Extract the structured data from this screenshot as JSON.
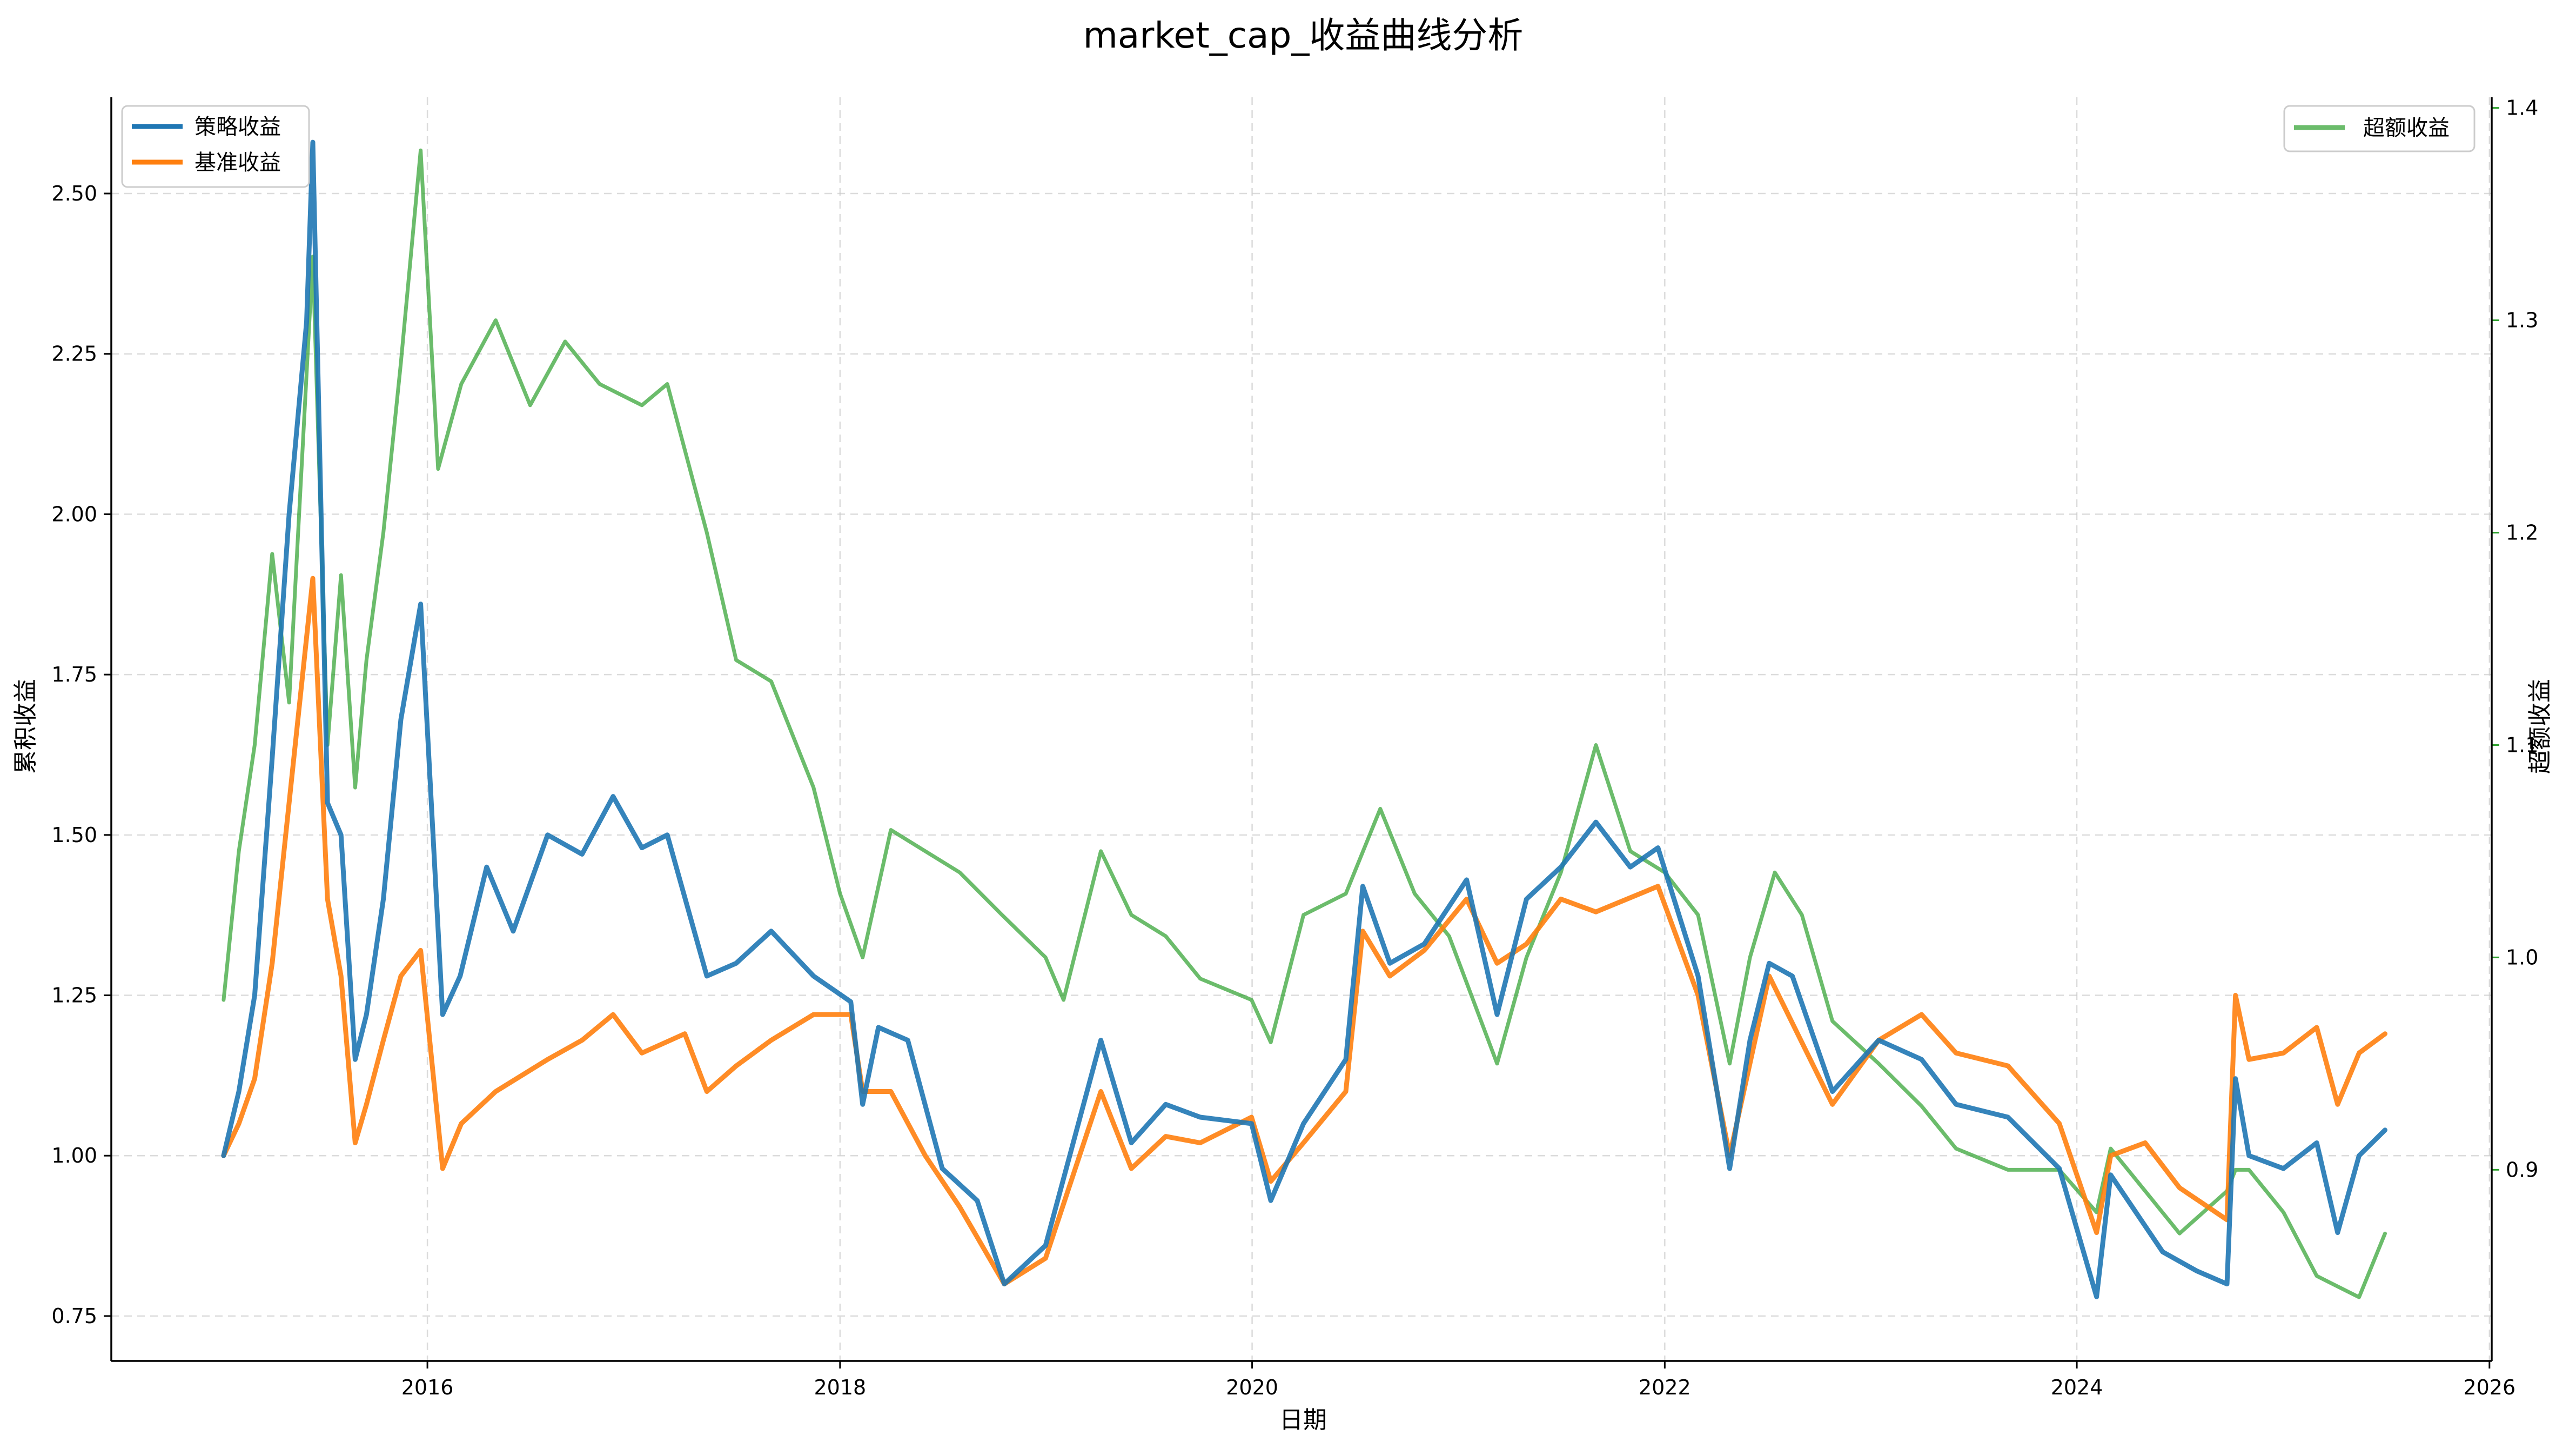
{
  "chart_data": {
    "type": "line",
    "title": "market_cap_收益曲线分析",
    "xlabel": "日期",
    "ylabel_left": "累积收益",
    "ylabel_right": "超额收益",
    "x_range": [
      "2014-06-20",
      "2026-01-05"
    ],
    "ylim_left": [
      0.68,
      2.65
    ],
    "ylim_right": [
      0.81,
      1.405
    ],
    "x_ticks": [
      "2016",
      "2018",
      "2020",
      "2022",
      "2024",
      "2026"
    ],
    "y_ticks_left": [
      "0.75",
      "1.00",
      "1.25",
      "1.50",
      "1.75",
      "2.00",
      "2.25",
      "2.50"
    ],
    "y_ticks_right": [
      "0.9",
      "1.0",
      "1.1",
      "1.2",
      "1.3",
      "1.4"
    ],
    "grid": true,
    "legend_left": [
      "策略收益",
      "基准收益"
    ],
    "legend_right": [
      "超额收益"
    ],
    "colors": {
      "strategy": "#1f77b4",
      "benchmark": "#ff7f0e",
      "excess": "#2ca02c",
      "right_axis": "#2ca02c"
    },
    "series": [
      {
        "name": "策略收益",
        "axis": "left",
        "points": [
          [
            "2015-01-05",
            1.0
          ],
          [
            "2015-02-01",
            1.1
          ],
          [
            "2015-03-01",
            1.25
          ],
          [
            "2015-04-01",
            1.62
          ],
          [
            "2015-05-01",
            2.0
          ],
          [
            "2015-06-01",
            2.3
          ],
          [
            "2015-06-12",
            2.58
          ],
          [
            "2015-07-08",
            1.55
          ],
          [
            "2015-08-01",
            1.5
          ],
          [
            "2015-08-26",
            1.15
          ],
          [
            "2015-09-15",
            1.22
          ],
          [
            "2015-10-15",
            1.4
          ],
          [
            "2015-11-15",
            1.68
          ],
          [
            "2015-12-20",
            1.86
          ],
          [
            "2016-01-28",
            1.22
          ],
          [
            "2016-02-28",
            1.28
          ],
          [
            "2016-04-15",
            1.45
          ],
          [
            "2016-06-01",
            1.35
          ],
          [
            "2016-08-01",
            1.5
          ],
          [
            "2016-10-01",
            1.47
          ],
          [
            "2016-11-25",
            1.56
          ],
          [
            "2017-01-15",
            1.48
          ],
          [
            "2017-03-01",
            1.5
          ],
          [
            "2017-05-10",
            1.28
          ],
          [
            "2017-07-01",
            1.3
          ],
          [
            "2017-09-01",
            1.35
          ],
          [
            "2017-11-15",
            1.28
          ],
          [
            "2018-01-20",
            1.24
          ],
          [
            "2018-02-10",
            1.08
          ],
          [
            "2018-03-10",
            1.2
          ],
          [
            "2018-05-01",
            1.18
          ],
          [
            "2018-07-01",
            0.98
          ],
          [
            "2018-09-01",
            0.93
          ],
          [
            "2018-10-19",
            0.8
          ],
          [
            "2018-12-31",
            0.86
          ],
          [
            "2019-04-08",
            1.18
          ],
          [
            "2019-06-01",
            1.02
          ],
          [
            "2019-08-01",
            1.08
          ],
          [
            "2019-10-01",
            1.06
          ],
          [
            "2019-12-31",
            1.05
          ],
          [
            "2020-02-03",
            0.93
          ],
          [
            "2020-04-01",
            1.05
          ],
          [
            "2020-06-15",
            1.15
          ],
          [
            "2020-07-15",
            1.42
          ],
          [
            "2020-09-01",
            1.3
          ],
          [
            "2020-11-01",
            1.33
          ],
          [
            "2021-01-15",
            1.43
          ],
          [
            "2021-03-10",
            1.22
          ],
          [
            "2021-05-01",
            1.4
          ],
          [
            "2021-07-01",
            1.45
          ],
          [
            "2021-09-01",
            1.52
          ],
          [
            "2021-11-01",
            1.45
          ],
          [
            "2021-12-20",
            1.48
          ],
          [
            "2022-03-01",
            1.28
          ],
          [
            "2022-04-26",
            0.98
          ],
          [
            "2022-06-01",
            1.18
          ],
          [
            "2022-07-05",
            1.3
          ],
          [
            "2022-08-15",
            1.28
          ],
          [
            "2022-10-25",
            1.1
          ],
          [
            "2023-01-15",
            1.18
          ],
          [
            "2023-04-01",
            1.15
          ],
          [
            "2023-06-01",
            1.08
          ],
          [
            "2023-09-01",
            1.06
          ],
          [
            "2023-12-01",
            0.98
          ],
          [
            "2024-02-05",
            0.78
          ],
          [
            "2024-03-01",
            0.97
          ],
          [
            "2024-06-01",
            0.85
          ],
          [
            "2024-08-01",
            0.82
          ],
          [
            "2024-09-23",
            0.8
          ],
          [
            "2024-10-08",
            1.12
          ],
          [
            "2024-11-01",
            1.0
          ],
          [
            "2025-01-01",
            0.98
          ],
          [
            "2025-03-01",
            1.02
          ],
          [
            "2025-04-07",
            0.88
          ],
          [
            "2025-05-15",
            1.0
          ],
          [
            "2025-06-30",
            1.04
          ]
        ]
      },
      {
        "name": "基准收益",
        "axis": "left",
        "points": [
          [
            "2015-01-05",
            1.0
          ],
          [
            "2015-02-01",
            1.05
          ],
          [
            "2015-03-01",
            1.12
          ],
          [
            "2015-04-01",
            1.3
          ],
          [
            "2015-05-01",
            1.55
          ],
          [
            "2015-06-12",
            1.9
          ],
          [
            "2015-07-08",
            1.4
          ],
          [
            "2015-08-01",
            1.28
          ],
          [
            "2015-08-26",
            1.02
          ],
          [
            "2015-09-15",
            1.08
          ],
          [
            "2015-10-15",
            1.18
          ],
          [
            "2015-11-15",
            1.28
          ],
          [
            "2015-12-20",
            1.32
          ],
          [
            "2016-01-28",
            0.98
          ],
          [
            "2016-03-01",
            1.05
          ],
          [
            "2016-05-01",
            1.1
          ],
          [
            "2016-08-01",
            1.15
          ],
          [
            "2016-10-01",
            1.18
          ],
          [
            "2016-11-25",
            1.22
          ],
          [
            "2017-01-15",
            1.16
          ],
          [
            "2017-04-01",
            1.19
          ],
          [
            "2017-05-10",
            1.1
          ],
          [
            "2017-07-01",
            1.14
          ],
          [
            "2017-09-01",
            1.18
          ],
          [
            "2017-11-15",
            1.22
          ],
          [
            "2018-01-20",
            1.22
          ],
          [
            "2018-02-10",
            1.1
          ],
          [
            "2018-04-01",
            1.1
          ],
          [
            "2018-06-01",
            1.0
          ],
          [
            "2018-08-01",
            0.92
          ],
          [
            "2018-10-19",
            0.8
          ],
          [
            "2018-12-31",
            0.84
          ],
          [
            "2019-04-08",
            1.1
          ],
          [
            "2019-06-01",
            0.98
          ],
          [
            "2019-08-01",
            1.03
          ],
          [
            "2019-10-01",
            1.02
          ],
          [
            "2019-12-31",
            1.06
          ],
          [
            "2020-02-03",
            0.96
          ],
          [
            "2020-04-01",
            1.02
          ],
          [
            "2020-06-15",
            1.1
          ],
          [
            "2020-07-15",
            1.35
          ],
          [
            "2020-09-01",
            1.28
          ],
          [
            "2020-11-01",
            1.32
          ],
          [
            "2021-01-15",
            1.4
          ],
          [
            "2021-03-10",
            1.3
          ],
          [
            "2021-05-01",
            1.33
          ],
          [
            "2021-07-01",
            1.4
          ],
          [
            "2021-09-01",
            1.38
          ],
          [
            "2021-12-20",
            1.42
          ],
          [
            "2022-03-01",
            1.25
          ],
          [
            "2022-04-26",
            1.0
          ],
          [
            "2022-07-05",
            1.28
          ],
          [
            "2022-10-25",
            1.08
          ],
          [
            "2023-01-15",
            1.18
          ],
          [
            "2023-04-01",
            1.22
          ],
          [
            "2023-06-01",
            1.16
          ],
          [
            "2023-09-01",
            1.14
          ],
          [
            "2023-12-01",
            1.05
          ],
          [
            "2024-02-05",
            0.88
          ],
          [
            "2024-03-01",
            1.0
          ],
          [
            "2024-05-01",
            1.02
          ],
          [
            "2024-07-01",
            0.95
          ],
          [
            "2024-09-23",
            0.9
          ],
          [
            "2024-10-08",
            1.25
          ],
          [
            "2024-11-01",
            1.15
          ],
          [
            "2025-01-01",
            1.16
          ],
          [
            "2025-03-01",
            1.2
          ],
          [
            "2025-04-07",
            1.08
          ],
          [
            "2025-05-15",
            1.16
          ],
          [
            "2025-06-30",
            1.19
          ]
        ]
      },
      {
        "name": "超额收益",
        "axis": "right",
        "points": [
          [
            "2015-01-05",
            0.98
          ],
          [
            "2015-02-01",
            1.05
          ],
          [
            "2015-03-01",
            1.1
          ],
          [
            "2015-04-01",
            1.19
          ],
          [
            "2015-05-01",
            1.12
          ],
          [
            "2015-06-12",
            1.33
          ],
          [
            "2015-07-08",
            1.1
          ],
          [
            "2015-08-01",
            1.18
          ],
          [
            "2015-08-26",
            1.08
          ],
          [
            "2015-09-15",
            1.14
          ],
          [
            "2015-10-15",
            1.2
          ],
          [
            "2015-11-15",
            1.28
          ],
          [
            "2015-12-20",
            1.38
          ],
          [
            "2016-01-20",
            1.23
          ],
          [
            "2016-03-01",
            1.27
          ],
          [
            "2016-05-01",
            1.3
          ],
          [
            "2016-07-01",
            1.26
          ],
          [
            "2016-09-01",
            1.29
          ],
          [
            "2016-11-01",
            1.27
          ],
          [
            "2017-01-15",
            1.26
          ],
          [
            "2017-03-01",
            1.27
          ],
          [
            "2017-05-10",
            1.2
          ],
          [
            "2017-07-01",
            1.14
          ],
          [
            "2017-09-01",
            1.13
          ],
          [
            "2017-11-15",
            1.08
          ],
          [
            "2018-01-01",
            1.03
          ],
          [
            "2018-02-10",
            1.0
          ],
          [
            "2018-04-01",
            1.06
          ],
          [
            "2018-06-01",
            1.05
          ],
          [
            "2018-08-01",
            1.04
          ],
          [
            "2018-10-15",
            1.02
          ],
          [
            "2018-12-31",
            1.0
          ],
          [
            "2019-02-01",
            0.98
          ],
          [
            "2019-04-08",
            1.05
          ],
          [
            "2019-06-01",
            1.02
          ],
          [
            "2019-08-01",
            1.01
          ],
          [
            "2019-10-01",
            0.99
          ],
          [
            "2019-12-31",
            0.98
          ],
          [
            "2020-02-03",
            0.96
          ],
          [
            "2020-04-01",
            1.02
          ],
          [
            "2020-06-15",
            1.03
          ],
          [
            "2020-08-15",
            1.07
          ],
          [
            "2020-10-15",
            1.03
          ],
          [
            "2020-12-15",
            1.01
          ],
          [
            "2021-03-10",
            0.95
          ],
          [
            "2021-05-01",
            1.0
          ],
          [
            "2021-07-01",
            1.04
          ],
          [
            "2021-09-01",
            1.1
          ],
          [
            "2021-11-01",
            1.05
          ],
          [
            "2022-01-01",
            1.04
          ],
          [
            "2022-03-01",
            1.02
          ],
          [
            "2022-04-26",
            0.95
          ],
          [
            "2022-06-01",
            1.0
          ],
          [
            "2022-07-15",
            1.04
          ],
          [
            "2022-09-01",
            1.02
          ],
          [
            "2022-10-25",
            0.97
          ],
          [
            "2023-01-15",
            0.95
          ],
          [
            "2023-04-01",
            0.93
          ],
          [
            "2023-06-01",
            0.91
          ],
          [
            "2023-09-01",
            0.9
          ],
          [
            "2023-12-01",
            0.9
          ],
          [
            "2024-02-05",
            0.88
          ],
          [
            "2024-03-01",
            0.91
          ],
          [
            "2024-05-01",
            0.89
          ],
          [
            "2024-07-01",
            0.87
          ],
          [
            "2024-09-23",
            0.89
          ],
          [
            "2024-10-08",
            0.9
          ],
          [
            "2024-11-01",
            0.9
          ],
          [
            "2025-01-01",
            0.88
          ],
          [
            "2025-03-01",
            0.85
          ],
          [
            "2025-05-15",
            0.84
          ],
          [
            "2025-06-30",
            0.87
          ]
        ]
      }
    ]
  }
}
